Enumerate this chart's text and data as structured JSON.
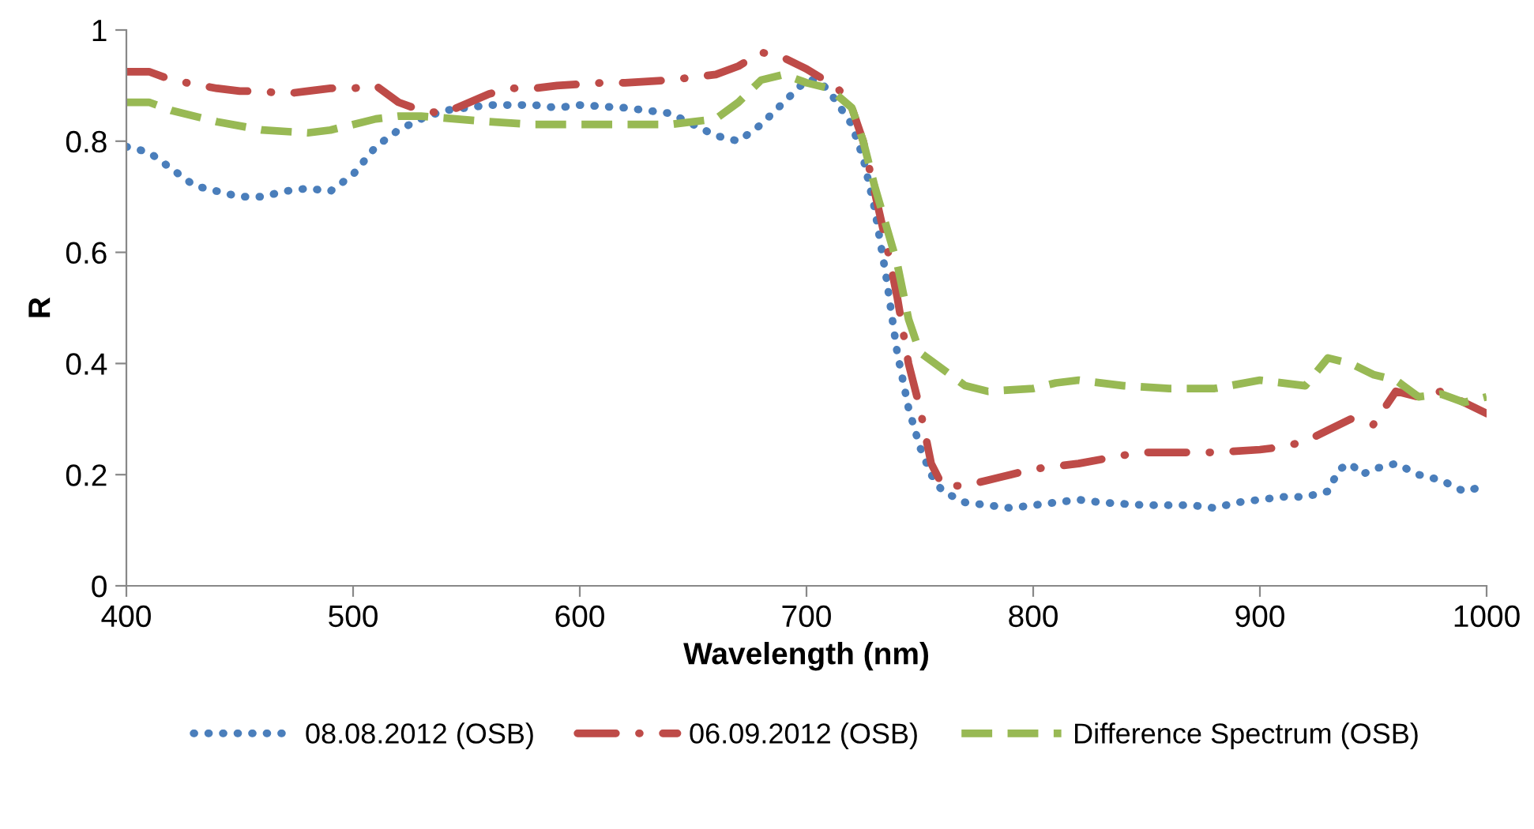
{
  "chart_data": {
    "type": "line",
    "xlabel": "Wavelength (nm)",
    "ylabel": "R",
    "xlim": [
      400,
      1000
    ],
    "ylim": [
      0,
      1
    ],
    "xticks": [
      400,
      500,
      600,
      700,
      800,
      900,
      1000
    ],
    "yticks": [
      0,
      {
        "value": 0.2,
        "label": "0.2"
      },
      {
        "value": 0.4,
        "label": "0.4"
      },
      {
        "value": 0.6,
        "label": "0.6"
      },
      {
        "value": 0.8,
        "label": "0.8"
      },
      1
    ],
    "grid": false,
    "legend": "bottom",
    "series": [
      {
        "name": "08.08.2012 (OSB)",
        "color": "#4a7ebb",
        "line_style": "dotted",
        "x": [
          400,
          410,
          420,
          430,
          440,
          450,
          460,
          470,
          480,
          490,
          500,
          510,
          520,
          530,
          540,
          550,
          560,
          570,
          580,
          590,
          600,
          620,
          630,
          640,
          650,
          660,
          670,
          680,
          690,
          700,
          705,
          710,
          720,
          725,
          730,
          735,
          740,
          745,
          750,
          755,
          760,
          770,
          780,
          790,
          800,
          810,
          820,
          830,
          850,
          870,
          880,
          890,
          900,
          910,
          920,
          930,
          935,
          940,
          945,
          950,
          960,
          970,
          980,
          990,
          1000
        ],
        "values": [
          0.79,
          0.78,
          0.75,
          0.72,
          0.71,
          0.7,
          0.7,
          0.71,
          0.715,
          0.71,
          0.74,
          0.79,
          0.82,
          0.84,
          0.855,
          0.86,
          0.865,
          0.865,
          0.865,
          0.86,
          0.865,
          0.86,
          0.855,
          0.85,
          0.83,
          0.81,
          0.8,
          0.83,
          0.87,
          0.91,
          0.91,
          0.89,
          0.83,
          0.77,
          0.68,
          0.56,
          0.42,
          0.32,
          0.25,
          0.2,
          0.17,
          0.15,
          0.145,
          0.14,
          0.145,
          0.15,
          0.155,
          0.15,
          0.145,
          0.145,
          0.14,
          0.15,
          0.155,
          0.16,
          0.16,
          0.17,
          0.21,
          0.22,
          0.2,
          0.21,
          0.22,
          0.2,
          0.19,
          0.17,
          0.18
        ]
      },
      {
        "name": "06.09.2012 (OSB)",
        "color": "#be4b48",
        "line_style": "dashdot",
        "x": [
          400,
          410,
          420,
          440,
          450,
          460,
          470,
          480,
          490,
          500,
          510,
          520,
          530,
          540,
          560,
          570,
          580,
          590,
          610,
          620,
          640,
          660,
          670,
          680,
          690,
          700,
          710,
          715,
          720,
          725,
          730,
          735,
          740,
          745,
          750,
          755,
          760,
          770,
          780,
          790,
          800,
          810,
          820,
          840,
          850,
          860,
          880,
          900,
          910,
          920,
          930,
          940,
          950,
          960,
          970,
          980,
          990,
          1000
        ],
        "values": [
          0.925,
          0.925,
          0.91,
          0.895,
          0.89,
          0.89,
          0.885,
          0.89,
          0.895,
          0.895,
          0.9,
          0.87,
          0.855,
          0.85,
          0.885,
          0.895,
          0.895,
          0.9,
          0.905,
          0.905,
          0.91,
          0.92,
          0.935,
          0.96,
          0.95,
          0.93,
          0.905,
          0.89,
          0.86,
          0.8,
          0.71,
          0.62,
          0.52,
          0.4,
          0.32,
          0.22,
          0.18,
          0.18,
          0.19,
          0.2,
          0.21,
          0.215,
          0.22,
          0.235,
          0.24,
          0.24,
          0.24,
          0.245,
          0.25,
          0.26,
          0.28,
          0.3,
          0.29,
          0.35,
          0.34,
          0.35,
          0.33,
          0.31
        ]
      },
      {
        "name": "Difference Spectrum (OSB)",
        "color": "#98b954",
        "line_style": "dashed",
        "x": [
          400,
          410,
          420,
          440,
          460,
          480,
          490,
          500,
          510,
          520,
          530,
          560,
          580,
          600,
          620,
          640,
          660,
          670,
          680,
          690,
          700,
          710,
          720,
          725,
          730,
          740,
          745,
          750,
          760,
          770,
          780,
          800,
          810,
          820,
          840,
          860,
          880,
          900,
          920,
          930,
          940,
          950,
          960,
          970,
          980,
          990,
          1000
        ],
        "values": [
          0.87,
          0.87,
          0.855,
          0.835,
          0.82,
          0.815,
          0.82,
          0.83,
          0.84,
          0.845,
          0.845,
          0.835,
          0.83,
          0.83,
          0.83,
          0.83,
          0.84,
          0.87,
          0.91,
          0.92,
          0.905,
          0.895,
          0.86,
          0.8,
          0.72,
          0.58,
          0.48,
          0.42,
          0.39,
          0.36,
          0.35,
          0.355,
          0.365,
          0.37,
          0.36,
          0.355,
          0.355,
          0.37,
          0.36,
          0.41,
          0.4,
          0.38,
          0.37,
          0.34,
          0.345,
          0.33,
          0.34
        ]
      }
    ]
  }
}
